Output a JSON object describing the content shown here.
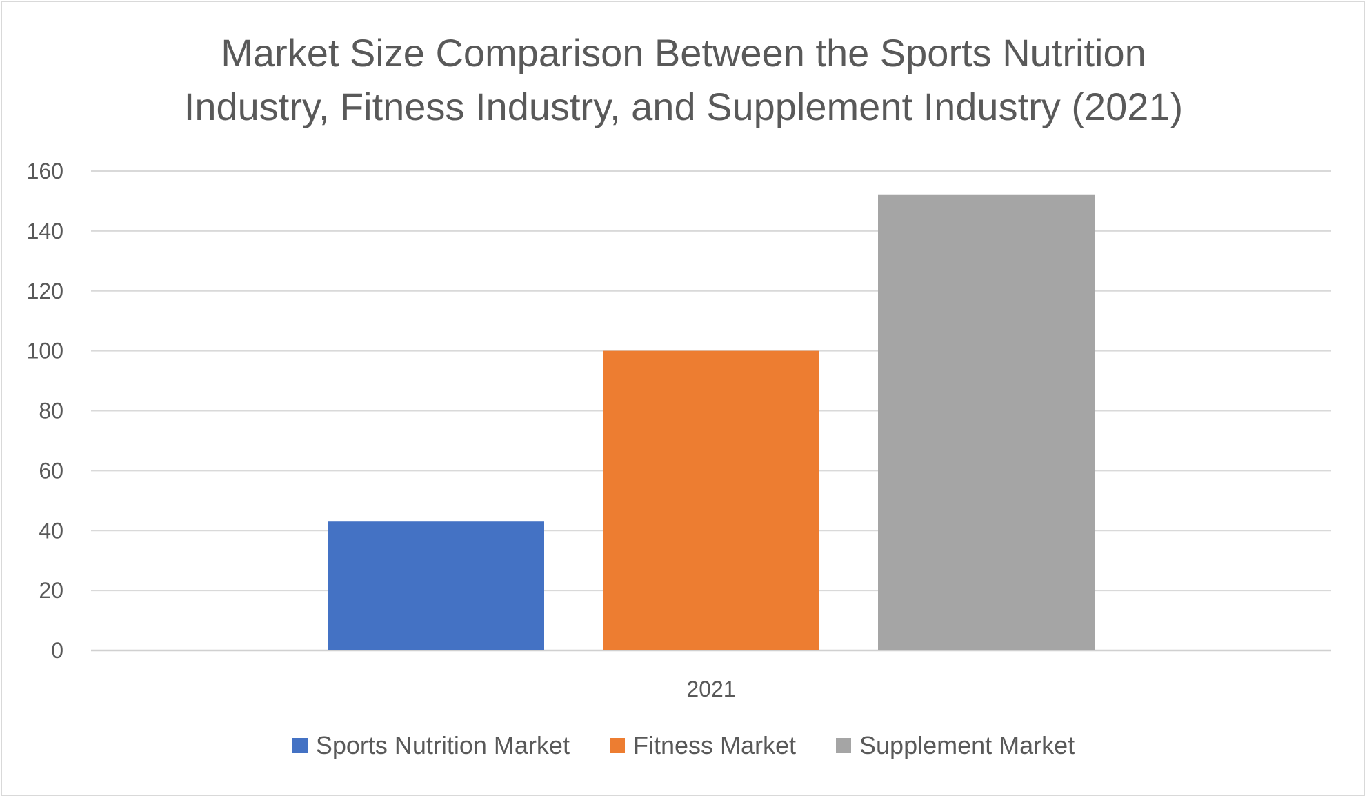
{
  "chart_data": {
    "type": "bar",
    "title": "Market Size Comparison Between the Sports Nutrition Industry, Fitness Industry, and Supplement Industry (2021)",
    "title_lines": [
      "Market Size Comparison Between the Sports Nutrition",
      "Industry, Fitness Industry, and Supplement Industry (2021)"
    ],
    "categories": [
      "2021"
    ],
    "series": [
      {
        "name": "Sports Nutrition Market",
        "values": [
          43
        ],
        "color": "#4472c4"
      },
      {
        "name": "Fitness Market",
        "values": [
          100
        ],
        "color": "#ed7d31"
      },
      {
        "name": "Supplement Market",
        "values": [
          152
        ],
        "color": "#a5a5a5"
      }
    ],
    "ylim": [
      0,
      160
    ],
    "yticks": [
      0,
      20,
      40,
      60,
      80,
      100,
      120,
      140,
      160
    ],
    "grid": true,
    "legend_position": "bottom",
    "xlabel": "",
    "ylabel": ""
  }
}
